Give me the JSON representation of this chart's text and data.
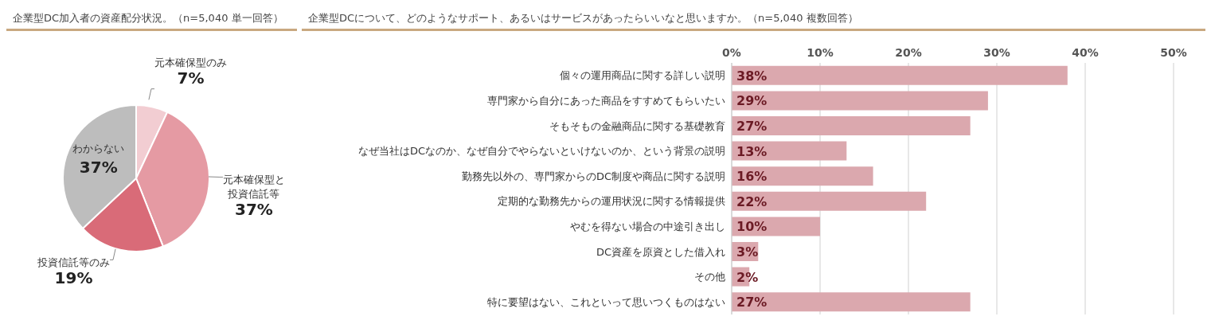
{
  "chart_data": [
    {
      "type": "pie",
      "title": "企業型DC加入者の資産配分状況。（n=5,040 単一回答）",
      "categories": [
        "元本確保型のみ",
        "元本確保型と投資信託等",
        "投資信託等のみ",
        "わからない"
      ],
      "values": [
        7,
        37,
        19,
        37
      ],
      "colors": [
        "#f2cdd2",
        "#e59aa3",
        "#d96b78",
        "#bdbdbd"
      ],
      "value_labels": [
        "7%",
        "37%",
        "19%",
        "37%"
      ]
    },
    {
      "type": "bar",
      "orientation": "horizontal",
      "title": "企業型DCについて、どのようなサポート、あるいはサービスがあったらいいなと思いますか。（n=5,040 複数回答）",
      "categories": [
        "個々の運用商品に関する詳しい説明",
        "専門家から自分にあった商品をすすめてもらいたい",
        "そもそもの金融商品に関する基礎教育",
        "なぜ当社はDCなのか、なぜ自分でやらないといけないのか、という背景の説明",
        "勤務先以外の、専門家からのDC制度や商品に関する説明",
        "定期的な勤務先からの運用状況に関する情報提供",
        "やむを得ない場合の中途引き出し",
        "DC資産を原資とした借入れ",
        "その他",
        "特に要望はない、これといって思いつくものはない"
      ],
      "values": [
        38,
        29,
        27,
        13,
        16,
        22,
        10,
        3,
        2,
        27
      ],
      "color": "#dba8ae",
      "value_labels": [
        "38%",
        "29%",
        "27%",
        "13%",
        "16%",
        "22%",
        "10%",
        "3%",
        "2%",
        "27%"
      ],
      "xlim": [
        0,
        50
      ],
      "xticks": [
        {
          "value": 0,
          "label": "0%"
        },
        {
          "value": 10,
          "label": "10%"
        },
        {
          "value": 20,
          "label": "20%"
        },
        {
          "value": 30,
          "label": "30%"
        },
        {
          "value": 40,
          "label": "40%"
        },
        {
          "value": 50,
          "label": "50%"
        }
      ],
      "grid": "x"
    }
  ]
}
